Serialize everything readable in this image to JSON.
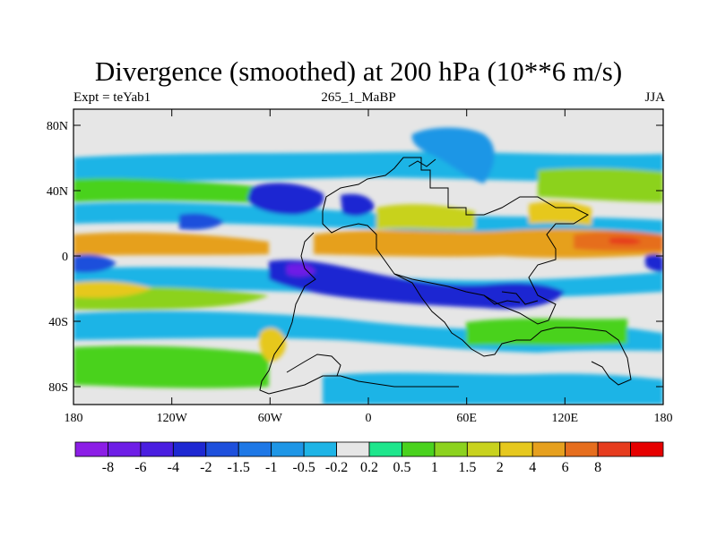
{
  "title": "Divergence (smoothed) at 200 hPa (10**6 m/s)",
  "left_label": "Expt = teYab1",
  "center_label": "265_1_MaBP",
  "right_label": "JJA",
  "lat_ticks": [
    "80N",
    "40N",
    "0",
    "40S",
    "80S"
  ],
  "lon_ticks": [
    "180",
    "120W",
    "60W",
    "0",
    "60E",
    "120E",
    "180"
  ],
  "colorbar": {
    "colors": [
      "#8c1ee6",
      "#6e1ee6",
      "#4a1ee0",
      "#1e28d2",
      "#1e50dc",
      "#1e78e6",
      "#1e96e6",
      "#1eb4e6",
      "#e6e6e6",
      "#1ee68c",
      "#4ad21e",
      "#8cd21e",
      "#c8d21e",
      "#e6c81e",
      "#e6a01e",
      "#e66e1e",
      "#e63c1e",
      "#e60000"
    ],
    "labels": [
      "-8",
      "-6",
      "-4",
      "-2",
      "-1.5",
      "-1",
      "-0.5",
      "-0.2",
      "0.2",
      "0.5",
      "1",
      "1.5",
      "2",
      "4",
      "6",
      "8"
    ]
  }
}
